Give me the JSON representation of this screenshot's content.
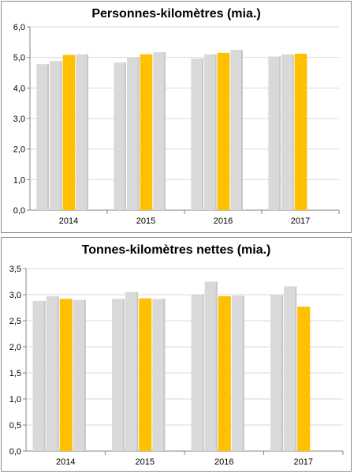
{
  "colors": {
    "grey_bar": "#d9d9d9",
    "highlight_bar": "#ffc000",
    "grid": "#d9d9d9",
    "axis": "#868686"
  },
  "chart_data": [
    {
      "type": "bar",
      "title": "Personnes-kilomètres (mia.)",
      "categories": [
        "2014",
        "2015",
        "2016",
        "2017"
      ],
      "ylim": [
        0,
        6
      ],
      "y_ticks": [
        "0,0",
        "1,0",
        "2,0",
        "3,0",
        "4,0",
        "5,0",
        "6,0"
      ],
      "grid": true,
      "groups": [
        {
          "values": [
            4.78,
            4.88,
            5.08,
            5.1
          ],
          "highlight_index": 2
        },
        {
          "values": [
            4.83,
            5.0,
            5.1,
            5.17
          ],
          "highlight_index": 2
        },
        {
          "values": [
            4.96,
            5.1,
            5.15,
            5.25
          ],
          "highlight_index": 2
        },
        {
          "values": [
            5.03,
            5.1,
            5.12
          ],
          "highlight_index": 2
        }
      ]
    },
    {
      "type": "bar",
      "title": "Tonnes-kilomètres nettes (mia.)",
      "categories": [
        "2014",
        "2015",
        "2016",
        "2017"
      ],
      "ylim": [
        0,
        3.5
      ],
      "y_ticks": [
        "0,0",
        "0,5",
        "1,0",
        "1,5",
        "2,0",
        "2,5",
        "3,0",
        "3,5"
      ],
      "grid": true,
      "groups": [
        {
          "values": [
            2.88,
            2.97,
            2.92,
            2.9
          ],
          "highlight_index": 2
        },
        {
          "values": [
            2.92,
            3.05,
            2.93,
            2.92
          ],
          "highlight_index": 2
        },
        {
          "values": [
            3.01,
            3.25,
            2.97,
            2.98
          ],
          "highlight_index": 2
        },
        {
          "values": [
            3.0,
            3.16,
            2.77
          ],
          "highlight_index": 2
        }
      ]
    }
  ]
}
